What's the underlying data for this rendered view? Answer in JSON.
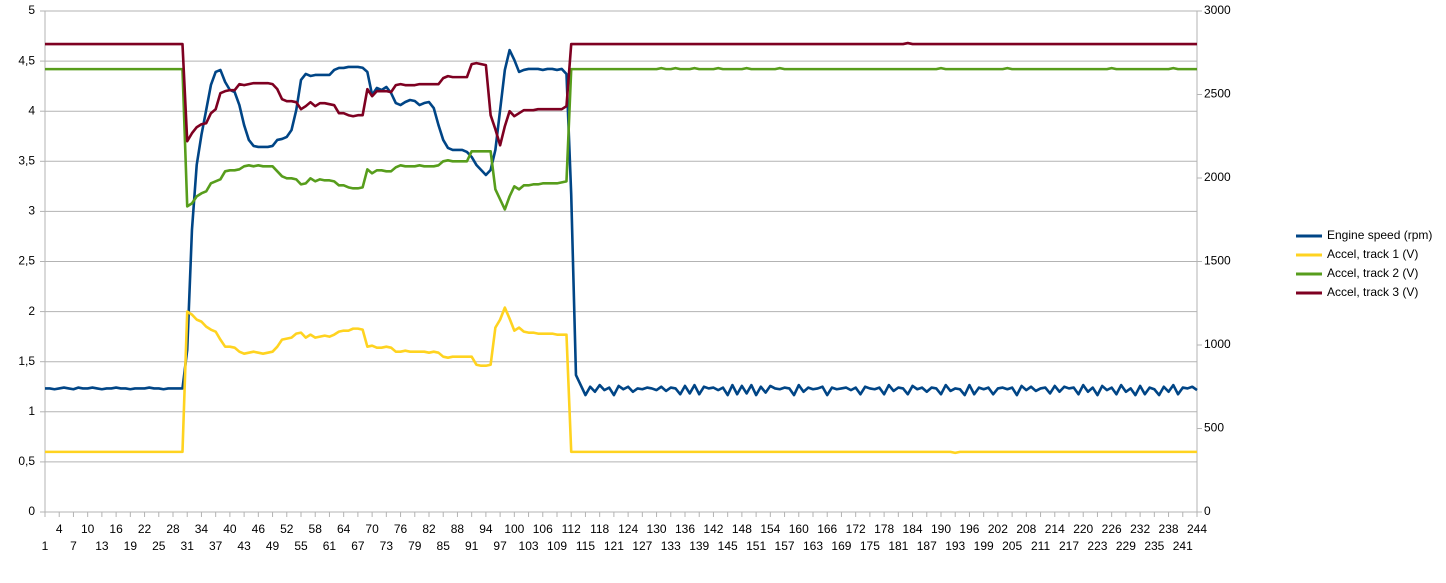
{
  "chart_data": {
    "type": "line",
    "ylim": [
      0,
      5
    ],
    "yticks": [
      0,
      {
        "value": 0.5,
        "label": "0,5"
      },
      1,
      {
        "value": 1.5,
        "label": "1,5"
      },
      2,
      {
        "value": 2.5,
        "label": "2,5"
      },
      3,
      {
        "value": 3.5,
        "label": "3,5"
      },
      4,
      {
        "value": 4.5,
        "label": "4,5"
      },
      5
    ],
    "y2lim": [
      0,
      3000
    ],
    "y2ticks": [
      0,
      500,
      1000,
      1500,
      2000,
      2500,
      3000
    ],
    "grid": true,
    "legend": "right",
    "categories": [
      1,
      null,
      null,
      4,
      null,
      null,
      7,
      null,
      null,
      10,
      null,
      null,
      13,
      null,
      null,
      16,
      null,
      null,
      19,
      null,
      null,
      22,
      null,
      null,
      25,
      null,
      null,
      28,
      null,
      null,
      31,
      null,
      null,
      34,
      null,
      null,
      37,
      null,
      null,
      40,
      null,
      null,
      43,
      null,
      null,
      46,
      null,
      null,
      49,
      null,
      null,
      52,
      null,
      null,
      55,
      null,
      null,
      58,
      null,
      null,
      61,
      null,
      null,
      64,
      null,
      null,
      67,
      null,
      null,
      70,
      null,
      null,
      73,
      null,
      null,
      76,
      null,
      null,
      79,
      null,
      null,
      82,
      null,
      null,
      85,
      null,
      null,
      88,
      null,
      null,
      91,
      null,
      null,
      94,
      null,
      null,
      97,
      null,
      null,
      100,
      null,
      null,
      103,
      null,
      null,
      106,
      null,
      null,
      109,
      null,
      null,
      112,
      null,
      null,
      115,
      null,
      null,
      118,
      null,
      null,
      121,
      null,
      null,
      124,
      null,
      null,
      127,
      null,
      null,
      130,
      null,
      null,
      133,
      null,
      null,
      136,
      null,
      null,
      139,
      null,
      null,
      142,
      null,
      null,
      145,
      null,
      null,
      148,
      null,
      null,
      151,
      null,
      null,
      154,
      null,
      null,
      157,
      null,
      null,
      160,
      null,
      null,
      163,
      null,
      null,
      166,
      null,
      null,
      169,
      null,
      null,
      172,
      null,
      null,
      175,
      null,
      null,
      178,
      null,
      null,
      181,
      null,
      null,
      184,
      null,
      null,
      187,
      null,
      null,
      190,
      null,
      null,
      193,
      null,
      null,
      196,
      null,
      null,
      199,
      null,
      null,
      202,
      null,
      null,
      205,
      null,
      null,
      208,
      null,
      null,
      211,
      null,
      null,
      214,
      null,
      null,
      217,
      null,
      null,
      220,
      null,
      null,
      223,
      null,
      null,
      226,
      null,
      null,
      229,
      null,
      null,
      232,
      null,
      null,
      235,
      null,
      null,
      238,
      null,
      null,
      241,
      null,
      null,
      244
    ],
    "series": [
      {
        "name": "Engine speed (rpm)",
        "color": "#004586",
        "axis": "y2",
        "values": [
          740,
          740,
          735,
          740,
          745,
          740,
          735,
          745,
          740,
          740,
          745,
          740,
          735,
          740,
          740,
          745,
          740,
          740,
          735,
          740,
          740,
          740,
          745,
          740,
          740,
          735,
          740,
          740,
          740,
          740,
          970,
          1690,
          2078,
          2258,
          2407,
          2557,
          2635,
          2647,
          2575,
          2527,
          2515,
          2437,
          2317,
          2228,
          2192,
          2186,
          2186,
          2186,
          2192,
          2228,
          2234,
          2246,
          2287,
          2407,
          2587,
          2623,
          2611,
          2617,
          2617,
          2617,
          2617,
          2647,
          2659,
          2659,
          2665,
          2665,
          2665,
          2660,
          2635,
          2497,
          2539,
          2527,
          2545,
          2509,
          2449,
          2437,
          2455,
          2467,
          2461,
          2437,
          2449,
          2455,
          2419,
          2317,
          2228,
          2180,
          2168,
          2168,
          2168,
          2156,
          2126,
          2078,
          2048,
          2018,
          2048,
          2168,
          2407,
          2647,
          2766,
          2707,
          2635,
          2647,
          2653,
          2653,
          2653,
          2647,
          2653,
          2653,
          2647,
          2653,
          2623,
          1900,
          820,
          760,
          700,
          750,
          720,
          760,
          730,
          745,
          700,
          755,
          735,
          750,
          720,
          740,
          735,
          745,
          740,
          730,
          750,
          725,
          745,
          740,
          705,
          755,
          710,
          760,
          705,
          750,
          740,
          745,
          730,
          745,
          700,
          760,
          705,
          755,
          710,
          760,
          700,
          750,
          715,
          755,
          740,
          735,
          745,
          740,
          700,
          760,
          720,
          745,
          735,
          740,
          750,
          700,
          745,
          735,
          740,
          745,
          730,
          745,
          705,
          750,
          740,
          735,
          745,
          705,
          760,
          725,
          745,
          740,
          705,
          755,
          735,
          745,
          720,
          745,
          740,
          705,
          760,
          725,
          740,
          735,
          700,
          760,
          705,
          745,
          735,
          745,
          705,
          740,
          745,
          735,
          745,
          700,
          755,
          730,
          750,
          725,
          740,
          745,
          710,
          755,
          720,
          750,
          740,
          745,
          705,
          760,
          720,
          745,
          700,
          755,
          730,
          745,
          705,
          760,
          720,
          740,
          700,
          755,
          705,
          745,
          735,
          700,
          750,
          720,
          760,
          705,
          745,
          740,
          750,
          730
        ]
      },
      {
        "name": "Accel, track 1 (V)",
        "color": "#ffd320",
        "values": [
          0.6,
          0.6,
          0.6,
          0.6,
          0.6,
          0.6,
          0.6,
          0.6,
          0.6,
          0.6,
          0.6,
          0.6,
          0.6,
          0.6,
          0.6,
          0.6,
          0.6,
          0.6,
          0.6,
          0.6,
          0.6,
          0.6,
          0.6,
          0.6,
          0.6,
          0.6,
          0.6,
          0.6,
          0.6,
          0.6,
          2.0,
          1.97,
          1.92,
          1.9,
          1.85,
          1.82,
          1.8,
          1.72,
          1.65,
          1.65,
          1.64,
          1.6,
          1.58,
          1.59,
          1.6,
          1.59,
          1.58,
          1.59,
          1.6,
          1.65,
          1.72,
          1.73,
          1.74,
          1.78,
          1.79,
          1.74,
          1.77,
          1.74,
          1.75,
          1.76,
          1.75,
          1.77,
          1.8,
          1.81,
          1.81,
          1.83,
          1.83,
          1.82,
          1.65,
          1.66,
          1.64,
          1.64,
          1.65,
          1.64,
          1.6,
          1.6,
          1.61,
          1.6,
          1.6,
          1.6,
          1.6,
          1.59,
          1.6,
          1.59,
          1.55,
          1.54,
          1.55,
          1.55,
          1.55,
          1.55,
          1.55,
          1.47,
          1.46,
          1.46,
          1.47,
          1.84,
          1.92,
          2.04,
          1.93,
          1.81,
          1.84,
          1.8,
          1.79,
          1.79,
          1.78,
          1.78,
          1.78,
          1.78,
          1.77,
          1.77,
          1.77,
          0.6,
          0.6,
          0.6,
          0.6,
          0.6,
          0.6,
          0.6,
          0.6,
          0.6,
          0.6,
          0.6,
          0.6,
          0.6,
          0.6,
          0.6,
          0.6,
          0.6,
          0.6,
          0.6,
          0.6,
          0.6,
          0.6,
          0.6,
          0.6,
          0.6,
          0.6,
          0.6,
          0.6,
          0.6,
          0.6,
          0.6,
          0.6,
          0.6,
          0.6,
          0.6,
          0.6,
          0.6,
          0.6,
          0.6,
          0.6,
          0.6,
          0.6,
          0.6,
          0.6,
          0.6,
          0.6,
          0.6,
          0.6,
          0.6,
          0.6,
          0.6,
          0.6,
          0.6,
          0.6,
          0.6,
          0.6,
          0.6,
          0.6,
          0.6,
          0.6,
          0.6,
          0.6,
          0.6,
          0.6,
          0.6,
          0.6,
          0.6,
          0.6,
          0.6,
          0.6,
          0.6,
          0.6,
          0.6,
          0.6,
          0.6,
          0.6,
          0.6,
          0.6,
          0.6,
          0.6,
          0.6,
          0.59,
          0.6,
          0.6,
          0.6,
          0.6,
          0.6,
          0.6,
          0.6,
          0.6,
          0.6,
          0.6,
          0.6,
          0.6,
          0.6,
          0.6,
          0.6,
          0.6,
          0.6,
          0.6,
          0.6,
          0.6,
          0.6,
          0.6,
          0.6,
          0.6,
          0.6,
          0.6,
          0.6,
          0.6,
          0.6,
          0.6,
          0.6,
          0.6,
          0.6,
          0.6,
          0.6,
          0.6,
          0.6,
          0.6,
          0.6,
          0.6,
          0.6,
          0.6,
          0.6,
          0.6,
          0.6,
          0.6,
          0.6,
          0.6,
          0.6,
          0.6,
          0.6
        ]
      },
      {
        "name": "Accel, track 2 (V)",
        "color": "#579d1c",
        "values": [
          4.42,
          4.42,
          4.42,
          4.42,
          4.42,
          4.42,
          4.42,
          4.42,
          4.42,
          4.42,
          4.42,
          4.42,
          4.42,
          4.42,
          4.42,
          4.42,
          4.42,
          4.42,
          4.42,
          4.42,
          4.42,
          4.42,
          4.42,
          4.42,
          4.42,
          4.42,
          4.42,
          4.42,
          4.42,
          4.42,
          3.05,
          3.08,
          3.15,
          3.18,
          3.2,
          3.28,
          3.3,
          3.32,
          3.4,
          3.41,
          3.41,
          3.42,
          3.45,
          3.46,
          3.45,
          3.46,
          3.45,
          3.45,
          3.45,
          3.4,
          3.35,
          3.33,
          3.33,
          3.32,
          3.27,
          3.28,
          3.33,
          3.3,
          3.32,
          3.31,
          3.31,
          3.3,
          3.26,
          3.26,
          3.24,
          3.23,
          3.23,
          3.24,
          3.42,
          3.38,
          3.41,
          3.41,
          3.4,
          3.4,
          3.44,
          3.46,
          3.45,
          3.45,
          3.45,
          3.46,
          3.45,
          3.45,
          3.45,
          3.46,
          3.5,
          3.51,
          3.5,
          3.5,
          3.5,
          3.5,
          3.6,
          3.6,
          3.6,
          3.6,
          3.6,
          3.22,
          3.12,
          3.02,
          3.15,
          3.25,
          3.22,
          3.26,
          3.26,
          3.27,
          3.27,
          3.28,
          3.28,
          3.28,
          3.28,
          3.29,
          3.3,
          4.42,
          4.42,
          4.42,
          4.42,
          4.42,
          4.42,
          4.42,
          4.42,
          4.42,
          4.42,
          4.42,
          4.42,
          4.42,
          4.42,
          4.42,
          4.42,
          4.42,
          4.42,
          4.42,
          4.43,
          4.42,
          4.42,
          4.43,
          4.42,
          4.42,
          4.42,
          4.43,
          4.42,
          4.42,
          4.42,
          4.42,
          4.43,
          4.42,
          4.42,
          4.42,
          4.42,
          4.42,
          4.43,
          4.42,
          4.42,
          4.42,
          4.42,
          4.42,
          4.42,
          4.43,
          4.42,
          4.42,
          4.42,
          4.42,
          4.42,
          4.42,
          4.42,
          4.42,
          4.42,
          4.42,
          4.42,
          4.42,
          4.42,
          4.42,
          4.42,
          4.42,
          4.42,
          4.42,
          4.42,
          4.42,
          4.42,
          4.42,
          4.42,
          4.42,
          4.42,
          4.42,
          4.42,
          4.42,
          4.42,
          4.42,
          4.42,
          4.42,
          4.42,
          4.43,
          4.42,
          4.42,
          4.42,
          4.42,
          4.42,
          4.42,
          4.42,
          4.42,
          4.42,
          4.42,
          4.42,
          4.42,
          4.42,
          4.43,
          4.42,
          4.42,
          4.42,
          4.42,
          4.42,
          4.42,
          4.42,
          4.42,
          4.42,
          4.42,
          4.42,
          4.42,
          4.42,
          4.42,
          4.42,
          4.42,
          4.42,
          4.42,
          4.42,
          4.42,
          4.42,
          4.43,
          4.42,
          4.42,
          4.42,
          4.42,
          4.42,
          4.42,
          4.42,
          4.42,
          4.42,
          4.42,
          4.42,
          4.42,
          4.43,
          4.42,
          4.42,
          4.42,
          4.42,
          4.42
        ]
      },
      {
        "name": "Accel, track 3 (V)",
        "color": "#7e0021",
        "values": [
          4.67,
          4.67,
          4.67,
          4.67,
          4.67,
          4.67,
          4.67,
          4.67,
          4.67,
          4.67,
          4.67,
          4.67,
          4.67,
          4.67,
          4.67,
          4.67,
          4.67,
          4.67,
          4.67,
          4.67,
          4.67,
          4.67,
          4.67,
          4.67,
          4.67,
          4.67,
          4.67,
          4.67,
          4.67,
          4.67,
          3.7,
          3.78,
          3.84,
          3.87,
          3.88,
          3.98,
          4.02,
          4.18,
          4.2,
          4.21,
          4.21,
          4.27,
          4.26,
          4.27,
          4.28,
          4.28,
          4.28,
          4.28,
          4.27,
          4.22,
          4.12,
          4.1,
          4.1,
          4.09,
          4.02,
          4.05,
          4.09,
          4.05,
          4.08,
          4.08,
          4.07,
          4.06,
          3.98,
          3.98,
          3.96,
          3.95,
          3.96,
          3.96,
          4.22,
          4.15,
          4.2,
          4.2,
          4.2,
          4.19,
          4.26,
          4.27,
          4.26,
          4.26,
          4.26,
          4.27,
          4.27,
          4.27,
          4.27,
          4.27,
          4.33,
          4.35,
          4.34,
          4.34,
          4.34,
          4.34,
          4.47,
          4.48,
          4.47,
          4.46,
          3.96,
          3.82,
          3.66,
          3.85,
          4.0,
          3.95,
          3.98,
          4.01,
          4.01,
          4.01,
          4.02,
          4.02,
          4.02,
          4.02,
          4.02,
          4.02,
          4.05,
          4.67,
          4.67,
          4.67,
          4.67,
          4.67,
          4.67,
          4.67,
          4.67,
          4.67,
          4.67,
          4.67,
          4.67,
          4.67,
          4.67,
          4.67,
          4.67,
          4.67,
          4.67,
          4.67,
          4.67,
          4.67,
          4.67,
          4.67,
          4.67,
          4.67,
          4.67,
          4.67,
          4.67,
          4.67,
          4.67,
          4.67,
          4.67,
          4.67,
          4.67,
          4.67,
          4.67,
          4.67,
          4.67,
          4.67,
          4.67,
          4.67,
          4.67,
          4.67,
          4.67,
          4.67,
          4.67,
          4.67,
          4.67,
          4.67,
          4.67,
          4.67,
          4.67,
          4.67,
          4.67,
          4.67,
          4.67,
          4.67,
          4.67,
          4.67,
          4.67,
          4.67,
          4.67,
          4.67,
          4.67,
          4.67,
          4.67,
          4.67,
          4.67,
          4.67,
          4.67,
          4.67,
          4.68,
          4.67,
          4.67,
          4.67,
          4.67,
          4.67,
          4.67,
          4.67,
          4.67,
          4.67,
          4.67,
          4.67,
          4.67,
          4.67,
          4.67,
          4.67,
          4.67,
          4.67,
          4.67,
          4.67,
          4.67,
          4.67,
          4.67,
          4.67,
          4.67,
          4.67,
          4.67,
          4.67,
          4.67,
          4.67,
          4.67,
          4.67,
          4.67,
          4.67,
          4.67,
          4.67,
          4.67,
          4.67,
          4.67,
          4.67,
          4.67,
          4.67,
          4.67,
          4.67,
          4.67,
          4.67,
          4.67,
          4.67,
          4.67,
          4.67,
          4.67,
          4.67,
          4.67,
          4.67,
          4.67,
          4.67,
          4.67,
          4.67,
          4.67,
          4.67,
          4.67,
          4.67
        ]
      }
    ]
  }
}
